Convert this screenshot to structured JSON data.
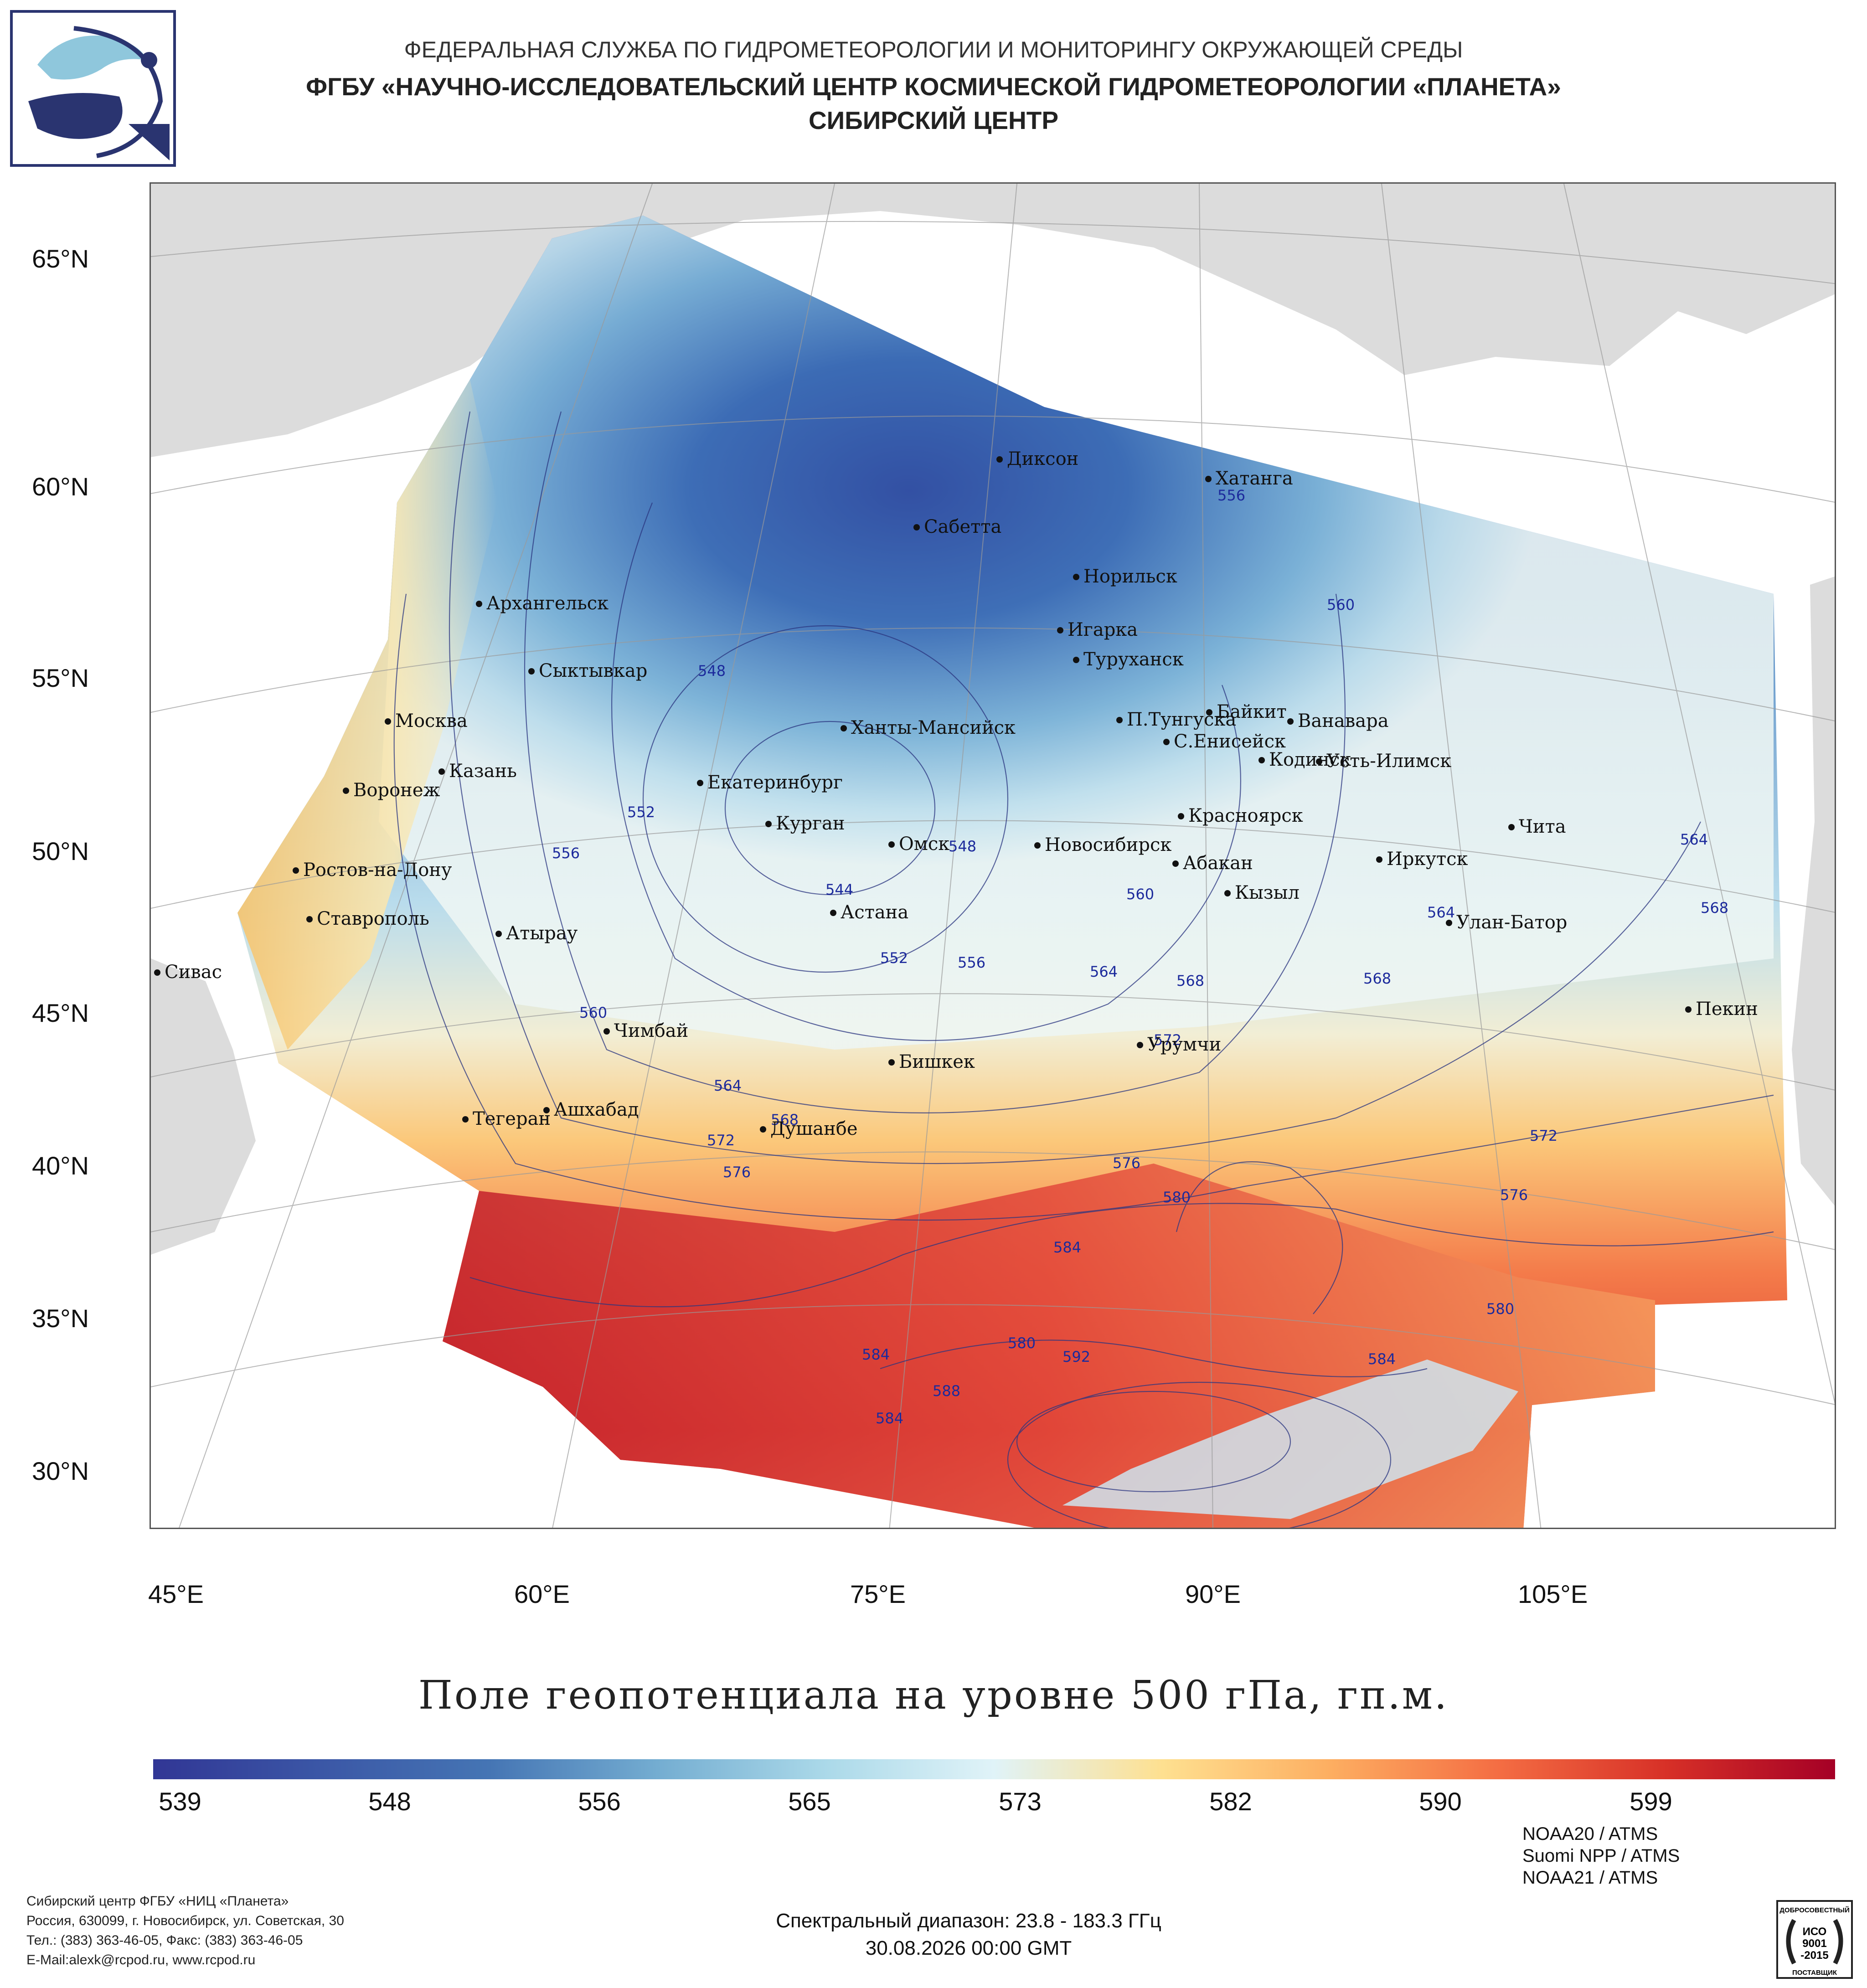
{
  "header": {
    "line1": "ФЕДЕРАЛЬНАЯ СЛУЖБА ПО ГИДРОМЕТЕОРОЛОГИИ И МОНИТОРИНГУ ОКРУЖАЮЩЕЙ СРЕДЫ",
    "line2": "ФГБУ «НАУЧНО-ИССЛЕДОВАТЕЛЬСКИЙ ЦЕНТР КОСМИЧЕСКОЙ ГИДРОМЕТЕОРОЛОГИИ «ПЛАНЕТА»",
    "line3": "СИБИРСКИЙ ЦЕНТР"
  },
  "map": {
    "lat_labels": [
      "65°N",
      "60°N",
      "55°N",
      "50°N",
      "45°N",
      "40°N",
      "35°N",
      "30°N"
    ],
    "lon_labels": [
      "45°E",
      "60°E",
      "75°E",
      "90°E",
      "105°E"
    ],
    "cities": [
      {
        "name": "Диксон"
      },
      {
        "name": "Хатанга"
      },
      {
        "name": "Сабетта"
      },
      {
        "name": "Норильск"
      },
      {
        "name": "Архангельск"
      },
      {
        "name": "Игарка"
      },
      {
        "name": "Туруханск"
      },
      {
        "name": "Сыктывкар"
      },
      {
        "name": "Байкит"
      },
      {
        "name": "Москва"
      },
      {
        "name": "Ханты-Мансийск"
      },
      {
        "name": "П.Тунгуска"
      },
      {
        "name": "Ванавара"
      },
      {
        "name": "С.Енисейск"
      },
      {
        "name": "Казань"
      },
      {
        "name": "Кодинск"
      },
      {
        "name": "Усть-Илимск"
      },
      {
        "name": "Воронеж"
      },
      {
        "name": "Екатеринбург"
      },
      {
        "name": "Красноярск"
      },
      {
        "name": "Курган"
      },
      {
        "name": "Чита"
      },
      {
        "name": "Омск"
      },
      {
        "name": "Новосибирск"
      },
      {
        "name": "Абакан"
      },
      {
        "name": "Иркутск"
      },
      {
        "name": "Ростов-на-Дону"
      },
      {
        "name": "Кызыл"
      },
      {
        "name": "Астана"
      },
      {
        "name": "Ставрополь"
      },
      {
        "name": "Улан-Батор"
      },
      {
        "name": "Атырау"
      },
      {
        "name": "Сивас"
      },
      {
        "name": "Пекин"
      },
      {
        "name": "Чимбай"
      },
      {
        "name": "Урумчи"
      },
      {
        "name": "Бишкек"
      },
      {
        "name": "Ашхабад"
      },
      {
        "name": "Тегеран"
      },
      {
        "name": "Душанбе"
      }
    ],
    "contour_labels": [
      "556",
      "560",
      "548",
      "552",
      "556",
      "544",
      "548",
      "552",
      "556",
      "560",
      "564",
      "560",
      "564",
      "568",
      "564",
      "568",
      "568",
      "572",
      "564",
      "568",
      "572",
      "576",
      "576",
      "580",
      "584",
      "572",
      "576",
      "580",
      "584",
      "580",
      "592",
      "588",
      "584",
      "584"
    ]
  },
  "plot_title": "Поле геопотенциала на уровне 500 гПа, гп.м.",
  "colorbar": {
    "tick_labels": [
      "539",
      "548",
      "556",
      "565",
      "573",
      "582",
      "590",
      "599"
    ],
    "colors": [
      "#313695",
      "#3b57a6",
      "#4575b4",
      "#74add1",
      "#abd9e9",
      "#e0f3f8",
      "#fee090",
      "#fdae61",
      "#f46d43",
      "#d73027",
      "#a50026"
    ]
  },
  "footer": {
    "org": "Сибирский центр ФГБУ «НИЦ «Планета»",
    "address": "Россия, 630099, г. Новосибирск, ул. Советская, 30",
    "phone": "Тел.: (383) 363-46-05, Факс: (383) 363-46-05",
    "email": "E-Mail:alexk@rcpod.ru, www.rcpod.ru",
    "spectral": "Спектральный диапазон: 23.8 - 183.3 ГГц",
    "datetime": "30.08.2026 00:00 GMT",
    "sources": [
      "NOAA20 / ATMS",
      "Suomi NPP / ATMS",
      "NOAA21 / ATMS"
    ],
    "iso_top": "ДОБРОСОВЕСТНЫЙ",
    "iso_line1": "ИСО",
    "iso_line2": "9001",
    "iso_line3": "-2015",
    "iso_bottom": "ПОСТАВЩИК"
  }
}
